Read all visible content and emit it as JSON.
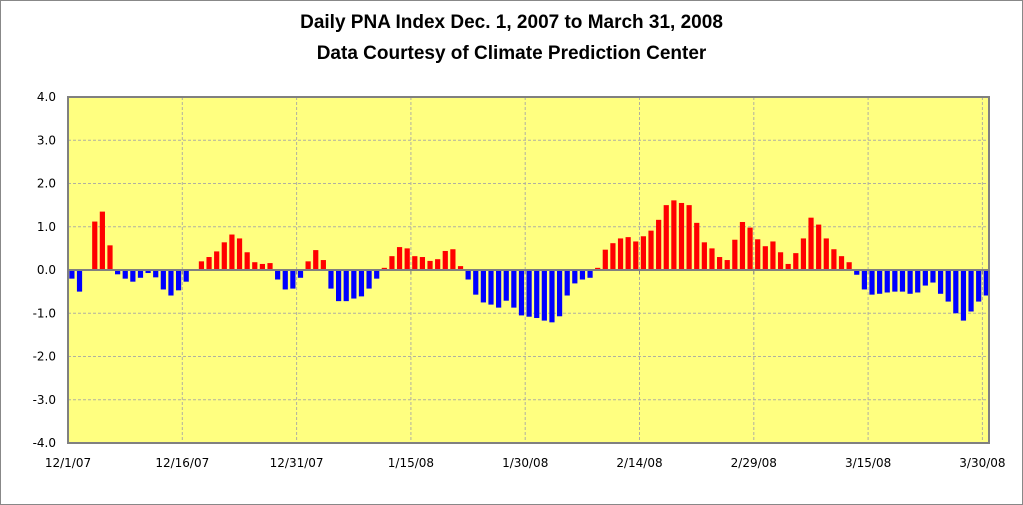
{
  "chart_data": {
    "type": "bar",
    "title": "Daily PNA Index Dec. 1, 2007 to March 31, 2008",
    "subtitle": "Data Courtesy of Climate Prediction Center",
    "xlabel": "",
    "ylabel": "",
    "ylim": [
      -4.0,
      4.0
    ],
    "y_ticks": [
      "-4.0",
      "-3.0",
      "-2.0",
      "-1.0",
      "0.0",
      "1.0",
      "2.0",
      "3.0",
      "4.0"
    ],
    "y_tick_values": [
      -4,
      -3,
      -2,
      -1,
      0,
      1,
      2,
      3,
      4
    ],
    "x_tick_labels": [
      "12/1/07",
      "12/16/07",
      "12/31/07",
      "1/15/08",
      "1/30/08",
      "2/14/08",
      "2/29/08",
      "3/15/08",
      "3/30/08"
    ],
    "x_tick_every_days": 15,
    "start_date": "12/1/07",
    "grid": true,
    "colors": {
      "positive": "#ff0000",
      "negative": "#0000ff",
      "plot_background": "#ffff80",
      "grid": "#b0b0a0"
    },
    "values": [
      -0.2,
      -0.5,
      0.0,
      1.12,
      1.35,
      0.57,
      -0.1,
      -0.2,
      -0.27,
      -0.18,
      -0.07,
      -0.17,
      -0.45,
      -0.59,
      -0.47,
      -0.27,
      0.02,
      0.2,
      0.3,
      0.43,
      0.64,
      0.82,
      0.73,
      0.41,
      0.18,
      0.14,
      0.16,
      -0.22,
      -0.45,
      -0.43,
      -0.18,
      0.2,
      0.46,
      0.23,
      -0.43,
      -0.72,
      -0.72,
      -0.66,
      -0.61,
      -0.43,
      -0.2,
      0.05,
      0.32,
      0.53,
      0.5,
      0.32,
      0.3,
      0.21,
      0.25,
      0.44,
      0.48,
      0.09,
      -0.22,
      -0.57,
      -0.75,
      -0.8,
      -0.87,
      -0.71,
      -0.87,
      -1.05,
      -1.08,
      -1.11,
      -1.17,
      -1.21,
      -1.07,
      -0.59,
      -0.31,
      -0.22,
      -0.18,
      0.05,
      0.47,
      0.62,
      0.73,
      0.76,
      0.66,
      0.78,
      0.91,
      1.16,
      1.5,
      1.61,
      1.55,
      1.5,
      1.09,
      0.64,
      0.5,
      0.3,
      0.23,
      0.7,
      1.11,
      0.98,
      0.71,
      0.55,
      0.66,
      0.41,
      0.14,
      0.39,
      0.73,
      1.21,
      1.05,
      0.73,
      0.48,
      0.32,
      0.18,
      -0.11,
      -0.45,
      -0.57,
      -0.55,
      -0.52,
      -0.5,
      -0.5,
      -0.55,
      -0.52,
      -0.36,
      -0.29,
      -0.55,
      -0.73,
      -1.0,
      -1.17,
      -0.96,
      -0.73,
      -0.59,
      -0.66
    ]
  }
}
